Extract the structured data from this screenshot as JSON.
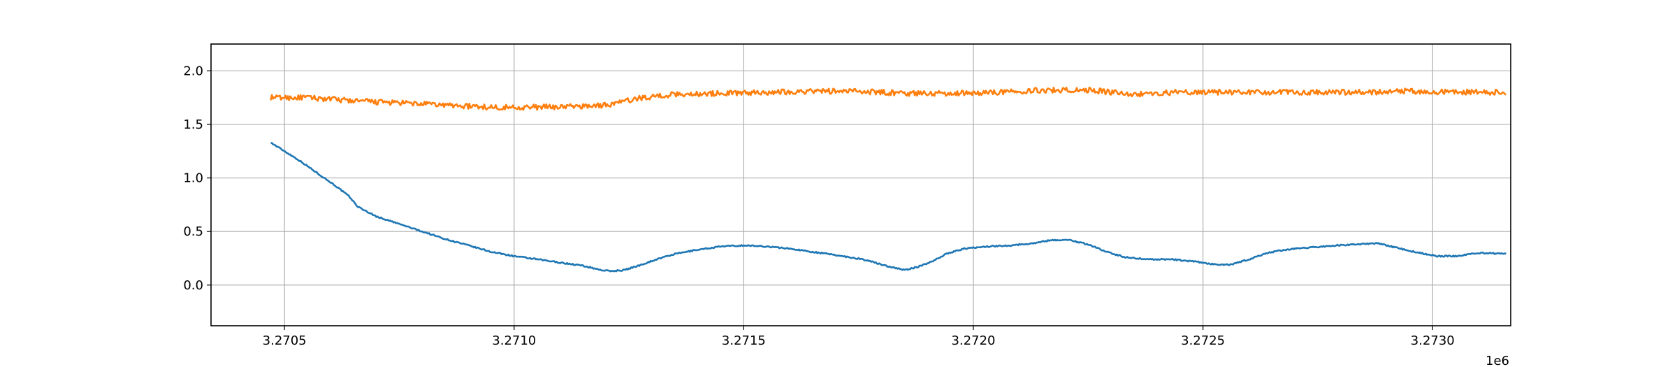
{
  "chart_data": {
    "type": "line",
    "title": "",
    "xlabel": "",
    "ylabel": "",
    "x_offset_label": "1e6",
    "xlim": [
      3270340,
      3273170
    ],
    "ylim": [
      -0.38,
      2.25
    ],
    "grid": true,
    "x_ticks": [
      {
        "value": 3270500,
        "label": "3.2705"
      },
      {
        "value": 3271000,
        "label": "3.2710"
      },
      {
        "value": 3271500,
        "label": "3.2715"
      },
      {
        "value": 3272000,
        "label": "3.2720"
      },
      {
        "value": 3272500,
        "label": "3.2725"
      },
      {
        "value": 3273000,
        "label": "3.2730"
      }
    ],
    "y_ticks": [
      {
        "value": 0.0,
        "label": "0.0"
      },
      {
        "value": 0.5,
        "label": "0.5"
      },
      {
        "value": 1.0,
        "label": "1.0"
      },
      {
        "value": 1.5,
        "label": "1.5"
      },
      {
        "value": 2.0,
        "label": "2.0"
      }
    ],
    "series": [
      {
        "color": "#1f77b4",
        "points": [
          [
            3270470,
            1.33
          ],
          [
            3270500,
            1.25
          ],
          [
            3270530,
            1.17
          ],
          [
            3270570,
            1.05
          ],
          [
            3270610,
            0.93
          ],
          [
            3270640,
            0.83
          ],
          [
            3270660,
            0.73
          ],
          [
            3270700,
            0.64
          ],
          [
            3270750,
            0.57
          ],
          [
            3270800,
            0.5
          ],
          [
            3270850,
            0.43
          ],
          [
            3270900,
            0.37
          ],
          [
            3270950,
            0.31
          ],
          [
            3271000,
            0.27
          ],
          [
            3271050,
            0.24
          ],
          [
            3271100,
            0.21
          ],
          [
            3271150,
            0.18
          ],
          [
            3271190,
            0.14
          ],
          [
            3271210,
            0.13
          ],
          [
            3271240,
            0.14
          ],
          [
            3271270,
            0.18
          ],
          [
            3271310,
            0.24
          ],
          [
            3271350,
            0.29
          ],
          [
            3271400,
            0.33
          ],
          [
            3271450,
            0.36
          ],
          [
            3271500,
            0.37
          ],
          [
            3271550,
            0.36
          ],
          [
            3271600,
            0.34
          ],
          [
            3271650,
            0.31
          ],
          [
            3271700,
            0.28
          ],
          [
            3271760,
            0.24
          ],
          [
            3271810,
            0.18
          ],
          [
            3271850,
            0.14
          ],
          [
            3271880,
            0.17
          ],
          [
            3271910,
            0.22
          ],
          [
            3271940,
            0.29
          ],
          [
            3271980,
            0.34
          ],
          [
            3272030,
            0.36
          ],
          [
            3272080,
            0.37
          ],
          [
            3272130,
            0.39
          ],
          [
            3272170,
            0.42
          ],
          [
            3272210,
            0.42
          ],
          [
            3272250,
            0.38
          ],
          [
            3272290,
            0.31
          ],
          [
            3272330,
            0.26
          ],
          [
            3272380,
            0.24
          ],
          [
            3272430,
            0.24
          ],
          [
            3272480,
            0.22
          ],
          [
            3272530,
            0.19
          ],
          [
            3272560,
            0.19
          ],
          [
            3272600,
            0.24
          ],
          [
            3272640,
            0.3
          ],
          [
            3272680,
            0.33
          ],
          [
            3272730,
            0.35
          ],
          [
            3272790,
            0.37
          ],
          [
            3272840,
            0.38
          ],
          [
            3272880,
            0.39
          ],
          [
            3272920,
            0.35
          ],
          [
            3272960,
            0.31
          ],
          [
            3273010,
            0.27
          ],
          [
            3273050,
            0.27
          ],
          [
            3273100,
            0.3
          ],
          [
            3273160,
            0.29
          ]
        ]
      },
      {
        "color": "#ff7f0e",
        "points": [
          [
            3270470,
            1.75
          ],
          [
            3270550,
            1.75
          ],
          [
            3270650,
            1.72
          ],
          [
            3270750,
            1.7
          ],
          [
            3270850,
            1.68
          ],
          [
            3270950,
            1.66
          ],
          [
            3271050,
            1.66
          ],
          [
            3271150,
            1.67
          ],
          [
            3271200,
            1.68
          ],
          [
            3271280,
            1.75
          ],
          [
            3271350,
            1.78
          ],
          [
            3271450,
            1.79
          ],
          [
            3271550,
            1.8
          ],
          [
            3271650,
            1.81
          ],
          [
            3271750,
            1.81
          ],
          [
            3271850,
            1.79
          ],
          [
            3271950,
            1.79
          ],
          [
            3272050,
            1.8
          ],
          [
            3272150,
            1.82
          ],
          [
            3272250,
            1.82
          ],
          [
            3272350,
            1.78
          ],
          [
            3272450,
            1.8
          ],
          [
            3272550,
            1.8
          ],
          [
            3272650,
            1.8
          ],
          [
            3272750,
            1.8
          ],
          [
            3272850,
            1.8
          ],
          [
            3272950,
            1.81
          ],
          [
            3273050,
            1.8
          ],
          [
            3273160,
            1.8
          ]
        ]
      }
    ]
  }
}
